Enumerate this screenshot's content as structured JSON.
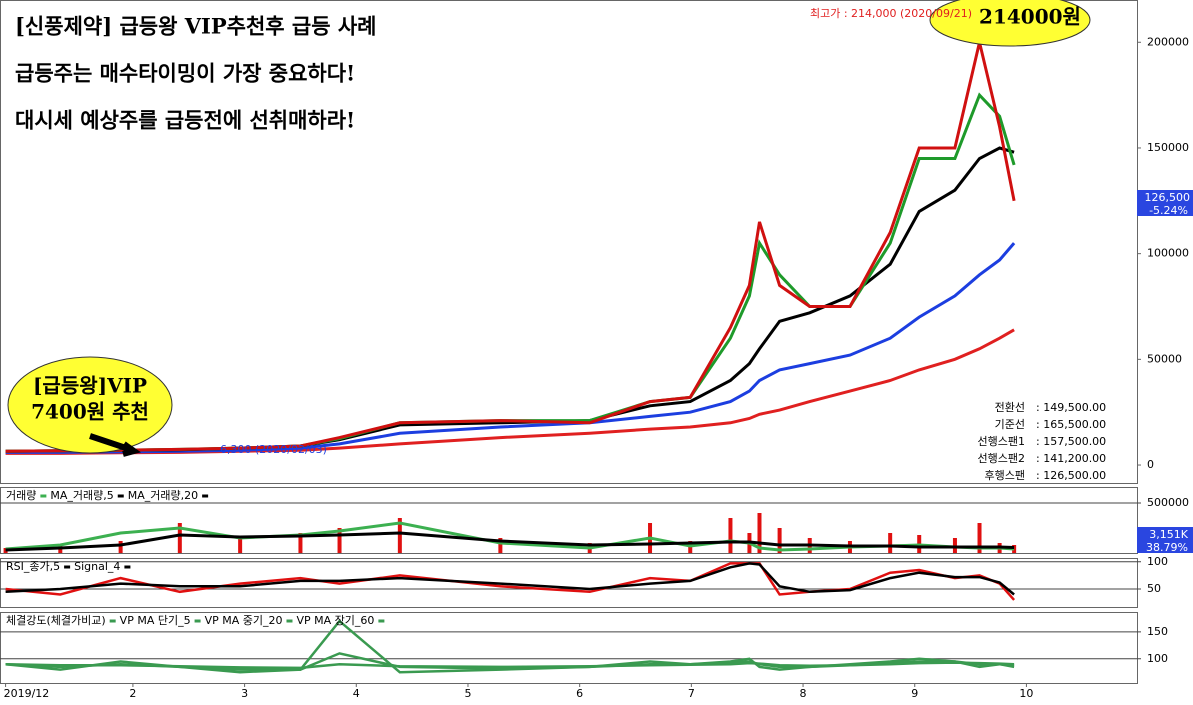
{
  "texts": {
    "headline": [
      "[신풍제약] 급등왕 VIP추천후 급등 사례",
      "급등주는 매수타이밍이 가장  중요하다!",
      "대시세 예상주를 급등전에 선취매하라!"
    ],
    "peak_bubble": "214000원",
    "vip_bubble": [
      "[급등왕]VIP",
      "7400원 추천"
    ],
    "high_note": "최고가 : 214,000 (2020/09/21)",
    "low_note": "6,300 (2020/02/03)",
    "current_price": "126,500",
    "current_change": "-5.24%",
    "volume_now": "3,151K",
    "volume_ratio": "38.79%",
    "info": [
      [
        "전환선",
        ": 149,500.00"
      ],
      [
        "기준선",
        ": 165,500.00"
      ],
      [
        "선행스팬1",
        ": 157,500.00"
      ],
      [
        "선행스팬2",
        ": 141,200.00"
      ],
      [
        "후행스팬",
        ": 126,500.00"
      ]
    ]
  },
  "chart_data": [
    {
      "type": "line",
      "x": [
        0.86,
        1.35,
        1.89,
        2.42,
        2.96,
        3.5,
        3.85,
        4.39,
        5.29,
        6.09,
        6.63,
        6.99,
        7.35,
        7.52,
        7.61,
        7.79,
        8.06,
        8.42,
        8.78,
        9.04,
        9.36,
        9.58,
        9.76,
        9.89
      ],
      "xlim": [
        0.81,
        10.99
      ],
      "ylim": [
        -8500,
        220000
      ],
      "yticks": [
        0,
        50000,
        100000,
        150000,
        200000
      ],
      "series": [
        {
          "color": "#e02020",
          "values": [
            5500,
            5500,
            5800,
            6000,
            6500,
            7000,
            8000,
            10000,
            13000,
            15000,
            17000,
            18000,
            20000,
            22000,
            24000,
            26000,
            30000,
            35000,
            40000,
            45000,
            50000,
            55000,
            60000,
            64000
          ]
        },
        {
          "color": "#1c3ee0",
          "values": [
            6000,
            6000,
            6200,
            6500,
            7000,
            8000,
            10000,
            15000,
            18000,
            20000,
            23000,
            25000,
            30000,
            35000,
            40000,
            45000,
            48000,
            52000,
            60000,
            70000,
            80000,
            90000,
            97000,
            105000
          ]
        },
        {
          "color": "#000000",
          "values": [
            6500,
            6800,
            7000,
            7200,
            8000,
            9000,
            12000,
            19000,
            20000,
            21000,
            28000,
            30000,
            40000,
            48000,
            55000,
            68000,
            72000,
            80000,
            95000,
            120000,
            130000,
            145000,
            150000,
            148000
          ]
        },
        {
          "color": "#1e9a2a",
          "values": [
            6500,
            6800,
            7000,
            7400,
            8000,
            9000,
            12500,
            20000,
            21000,
            21000,
            30000,
            32000,
            60000,
            80000,
            105000,
            90000,
            75000,
            75000,
            105000,
            145000,
            145000,
            175000,
            165000,
            142000
          ]
        },
        {
          "color": "#d01010",
          "values": [
            6500,
            6800,
            7000,
            7400,
            8000,
            9000,
            13000,
            20000,
            21000,
            20000,
            30000,
            32000,
            65000,
            85000,
            115000,
            85000,
            75000,
            75000,
            110000,
            150000,
            150000,
            200000,
            160000,
            125000
          ]
        }
      ]
    },
    {
      "type": "volume",
      "ylim": [
        0,
        660000
      ],
      "yticks": [
        500000
      ],
      "series": [
        {
          "name": "거래량",
          "kind": "bar",
          "color": "#e01010",
          "values": [
            50000,
            80000,
            120000,
            300000,
            150000,
            200000,
            250000,
            350000,
            150000,
            100000,
            300000,
            120000,
            350000,
            200000,
            400000,
            250000,
            150000,
            120000,
            200000,
            180000,
            150000,
            300000,
            100000,
            80000
          ]
        },
        {
          "name": "MA_거래량,5",
          "kind": "line",
          "color": "#3cb050",
          "values": [
            40000,
            80000,
            200000,
            250000,
            150000,
            180000,
            220000,
            300000,
            100000,
            50000,
            150000,
            70000,
            120000,
            100000,
            50000,
            30000,
            40000,
            60000,
            70000,
            80000,
            60000,
            50000,
            50000,
            40000
          ]
        },
        {
          "name": "MA_거래량,20",
          "kind": "line",
          "color": "#000000",
          "values": [
            30000,
            50000,
            80000,
            180000,
            160000,
            170000,
            180000,
            200000,
            120000,
            80000,
            90000,
            100000,
            110000,
            110000,
            100000,
            80000,
            80000,
            70000,
            70000,
            60000,
            60000,
            60000,
            60000,
            55000
          ]
        }
      ]
    },
    {
      "type": "line",
      "ylim": [
        17,
        107
      ],
      "yticks": [
        50,
        100
      ],
      "series": [
        {
          "name": "RSI_종가,5",
          "color": "#e01010",
          "values": [
            50,
            40,
            70,
            45,
            60,
            70,
            60,
            75,
            55,
            45,
            70,
            65,
            97,
            97,
            97,
            40,
            45,
            50,
            80,
            85,
            70,
            75,
            60,
            30
          ]
        },
        {
          "name": "Signal_4",
          "color": "#000000",
          "values": [
            45,
            50,
            60,
            55,
            55,
            65,
            65,
            70,
            60,
            50,
            60,
            65,
            90,
            97,
            95,
            55,
            45,
            48,
            70,
            80,
            72,
            72,
            62,
            40
          ]
        }
      ]
    },
    {
      "type": "line",
      "title": "체결강도(체결가비교)",
      "ylim": [
        55,
        187
      ],
      "yticks": [
        100,
        150
      ],
      "xticks": [
        {
          "value": 0.86,
          "label": "2019/12"
        },
        2,
        3,
        4,
        5,
        6,
        7,
        8,
        9,
        10
      ],
      "series": [
        {
          "name": "VP MA 단기_5",
          "color": "#3a9a50",
          "values": [
            90,
            80,
            95,
            85,
            75,
            80,
            170,
            75,
            80,
            85,
            95,
            90,
            95,
            100,
            85,
            80,
            85,
            90,
            95,
            100,
            95,
            85,
            90,
            85
          ]
        },
        {
          "name": "VP MA 중기_20",
          "color": "#3a9a50",
          "values": [
            90,
            85,
            90,
            85,
            80,
            80,
            110,
            85,
            82,
            85,
            90,
            90,
            93,
            95,
            90,
            85,
            85,
            88,
            92,
            95,
            95,
            90,
            90,
            88
          ]
        },
        {
          "name": "VP MA 장기_60",
          "color": "#3a9a50",
          "values": [
            90,
            88,
            88,
            86,
            84,
            83,
            90,
            86,
            85,
            86,
            88,
            89,
            90,
            92,
            91,
            88,
            87,
            88,
            90,
            92,
            93,
            92,
            91,
            90
          ]
        }
      ]
    }
  ]
}
